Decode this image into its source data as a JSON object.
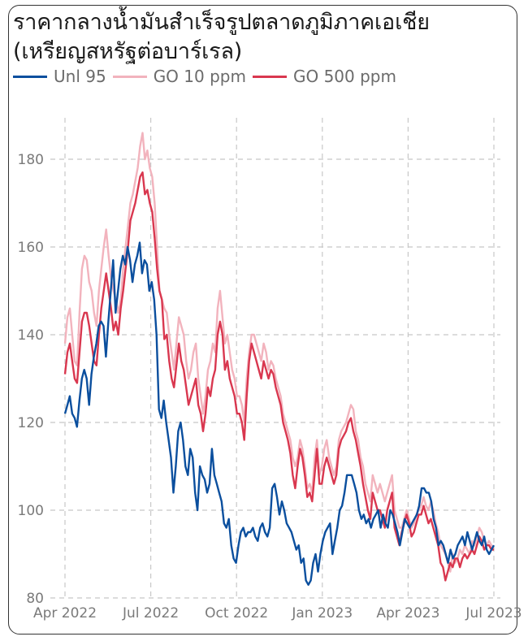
{
  "chart_data": {
    "type": "line",
    "title": "ราคากลางน้ำมันสำเร็จรูปตลาดภูมิภาคเอเชีย",
    "subtitle": "(เหรียญสหรัฐต่อบาร์เรล)",
    "xlabel": "",
    "ylabel": "",
    "ylim": [
      80,
      186
    ],
    "yticks": [
      80,
      100,
      120,
      140,
      160,
      180
    ],
    "xlim_months_from_apr2022": [
      0,
      15
    ],
    "xticks": [
      {
        "label": "Apr 2022",
        "month": 0
      },
      {
        "label": "Jul 2022",
        "month": 3
      },
      {
        "label": "Oct 2022",
        "month": 6
      },
      {
        "label": "Jan 2023",
        "month": 9
      },
      {
        "label": "Apr 2023",
        "month": 12
      },
      {
        "label": "Jul 2023",
        "month": 15
      }
    ],
    "grid": true,
    "legend_position": "top-left",
    "x_step_months": 0.125,
    "series": [
      {
        "name": "Unl 95",
        "color": "#0b4f9e",
        "values": [
          122,
          124,
          126,
          122,
          121,
          119,
          125,
          130,
          132,
          130,
          124,
          131,
          135,
          138,
          142,
          143,
          142,
          135,
          143,
          150,
          157,
          145,
          150,
          155,
          158,
          156,
          160,
          157,
          152,
          156,
          158,
          161,
          154,
          157,
          156,
          150,
          152,
          148,
          140,
          123,
          121,
          125,
          120,
          116,
          112,
          104,
          110,
          118,
          120,
          116,
          110,
          108,
          114,
          112,
          104,
          100,
          110,
          108,
          107,
          104,
          106,
          114,
          108,
          106,
          104,
          102,
          97,
          96,
          98,
          92,
          89,
          88,
          92,
          95,
          96,
          94,
          95,
          95,
          96,
          94,
          93,
          96,
          97,
          95,
          94,
          96,
          105,
          106,
          103,
          99,
          102,
          100,
          97,
          96,
          95,
          93,
          91,
          92,
          88,
          89,
          84,
          83,
          84,
          88,
          90,
          86,
          90,
          93,
          95,
          96,
          97,
          90,
          93,
          96,
          100,
          101,
          104,
          108,
          108,
          108,
          106,
          104,
          100,
          98,
          99,
          97,
          98,
          96,
          98,
          99,
          100,
          96,
          99,
          97,
          96,
          100,
          99,
          97,
          95,
          92,
          95,
          98,
          97,
          96,
          97,
          98,
          99,
          101,
          105,
          105,
          104,
          104,
          102,
          98,
          96,
          92,
          93,
          92,
          90,
          88,
          91,
          89,
          90,
          92,
          93,
          94,
          92,
          95,
          93,
          91,
          93,
          95,
          93,
          92,
          94,
          91,
          90,
          91,
          92
        ],
        "x_start_month": 0
      },
      {
        "name": "GO 10 ppm",
        "color": "#f2b3bd",
        "values": [
          138,
          144,
          146,
          140,
          134,
          133,
          145,
          155,
          158,
          157,
          152,
          150,
          145,
          142,
          150,
          155,
          160,
          164,
          158,
          153,
          150,
          148,
          145,
          148,
          155,
          160,
          165,
          170,
          172,
          175,
          178,
          183,
          186,
          180,
          182,
          178,
          176,
          170,
          160,
          150,
          148,
          146,
          145,
          140,
          136,
          132,
          138,
          144,
          142,
          140,
          134,
          130,
          132,
          136,
          138,
          130,
          126,
          122,
          126,
          132,
          134,
          138,
          136,
          146,
          150,
          144,
          138,
          140,
          136,
          132,
          130,
          126,
          126,
          124,
          120,
          130,
          136,
          140,
          140,
          138,
          136,
          134,
          138,
          136,
          132,
          134,
          133,
          130,
          128,
          126,
          122,
          120,
          118,
          116,
          112,
          110,
          112,
          116,
          114,
          110,
          105,
          106,
          104,
          112,
          116,
          108,
          110,
          114,
          116,
          112,
          110,
          108,
          110,
          116,
          118,
          119,
          120,
          122,
          124,
          123,
          118,
          116,
          112,
          110,
          106,
          104,
          102,
          108,
          106,
          104,
          106,
          104,
          102,
          104,
          106,
          108,
          100,
          98,
          96,
          96,
          98,
          100,
          98,
          96,
          97,
          99,
          100,
          101,
          103,
          101,
          100,
          102,
          100,
          97,
          95,
          92,
          91,
          90,
          88,
          86,
          90,
          88,
          89,
          91,
          90,
          92,
          91,
          90,
          93,
          92,
          94,
          96,
          95,
          93,
          92,
          93,
          92,
          91
        ],
        "x_start_month": 0
      },
      {
        "name": "GO 500 ppm",
        "color": "#d9374f",
        "values": [
          131,
          136,
          138,
          134,
          130,
          129,
          136,
          143,
          145,
          145,
          142,
          138,
          134,
          133,
          140,
          146,
          150,
          154,
          150,
          146,
          141,
          143,
          140,
          146,
          150,
          155,
          160,
          166,
          168,
          170,
          173,
          176,
          177,
          172,
          173,
          170,
          168,
          162,
          155,
          150,
          148,
          139,
          140,
          134,
          130,
          128,
          133,
          138,
          134,
          132,
          128,
          124,
          126,
          128,
          130,
          124,
          122,
          118,
          122,
          128,
          126,
          130,
          132,
          140,
          143,
          140,
          132,
          134,
          130,
          128,
          126,
          122,
          122,
          120,
          116,
          126,
          134,
          138,
          136,
          134,
          132,
          130,
          134,
          132,
          130,
          132,
          131,
          128,
          126,
          124,
          120,
          118,
          116,
          113,
          108,
          105,
          110,
          114,
          112,
          108,
          103,
          104,
          102,
          108,
          114,
          106,
          106,
          110,
          112,
          110,
          108,
          106,
          108,
          114,
          116,
          117,
          118,
          120,
          121,
          118,
          116,
          113,
          110,
          106,
          103,
          100,
          98,
          104,
          102,
          100,
          100,
          98,
          96,
          100,
          102,
          104,
          96,
          94,
          92,
          95,
          97,
          99,
          97,
          94,
          95,
          97,
          99,
          99,
          101,
          99,
          97,
          98,
          96,
          94,
          92,
          88,
          87,
          84,
          86,
          88,
          87,
          89,
          89,
          87,
          89,
          90,
          89,
          90,
          91,
          90,
          92,
          94,
          93,
          91,
          92,
          92,
          91,
          91
        ],
        "x_start_month": 0
      }
    ]
  }
}
